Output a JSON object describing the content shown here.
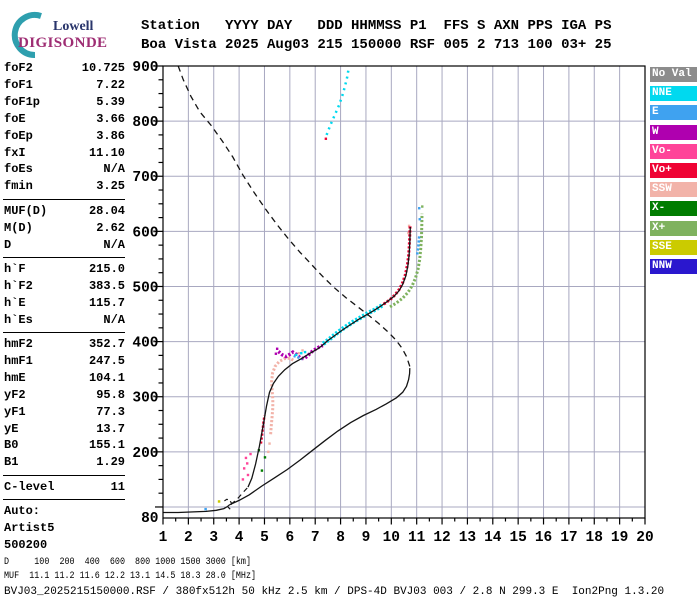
{
  "logo": {
    "line1": "Lowell",
    "line2": "DIGISONDE",
    "arc_color": "#2E9FAE",
    "lowell_color": "#29356B",
    "digisonde_color": "#9E2D73"
  },
  "header": {
    "line1": "Station   YYYY DAY   DDD HHMMSS P1  FFS S AXN PPS IGA PS",
    "line2": "Boa Vista 2025 Aug03 215 150000 RSF 005 2 713 100 03+ 25"
  },
  "params": {
    "rows": [
      {
        "label": "foF2",
        "value": "10.725"
      },
      {
        "label": "foF1",
        "value": "7.22"
      },
      {
        "label": "foF1p",
        "value": "5.39"
      },
      {
        "label": "foE",
        "value": "3.66"
      },
      {
        "label": "foEp",
        "value": "3.86"
      },
      {
        "label": "fxI",
        "value": "11.10"
      },
      {
        "label": "foEs",
        "value": "N/A"
      },
      {
        "label": "fmin",
        "value": "3.25"
      },
      {
        "divider": true
      },
      {
        "label": "MUF(D)",
        "value": "28.04"
      },
      {
        "label": "M(D)",
        "value": "2.62"
      },
      {
        "label": "D",
        "value": "N/A"
      },
      {
        "divider": true
      },
      {
        "label": "h`F",
        "value": "215.0"
      },
      {
        "label": "h`F2",
        "value": "383.5"
      },
      {
        "label": "h`E",
        "value": "115.7"
      },
      {
        "label": "h`Es",
        "value": "N/A"
      },
      {
        "divider": true
      },
      {
        "label": "hmF2",
        "value": "352.7"
      },
      {
        "label": "hmF1",
        "value": "247.5"
      },
      {
        "label": "hmE",
        "value": "104.1"
      },
      {
        "label": "yF2",
        "value": "95.8"
      },
      {
        "label": "yF1",
        "value": "77.3"
      },
      {
        "label": "yE",
        "value": "13.7"
      },
      {
        "label": "B0",
        "value": "155.1"
      },
      {
        "label": "B1",
        "value": "1.29"
      },
      {
        "divider": true
      },
      {
        "label": "C-level",
        "value": "11"
      },
      {
        "divider": true
      },
      {
        "label": "Auto:",
        "value": ""
      },
      {
        "label": "Artist5",
        "value": ""
      },
      {
        "label": "500200",
        "value": ""
      }
    ]
  },
  "legend": {
    "items": [
      {
        "label": "No Val",
        "color": "#8C8C8C"
      },
      {
        "label": "NNE",
        "color": "#00D9EF"
      },
      {
        "label": "E",
        "color": "#3FA2F0"
      },
      {
        "label": "W",
        "color": "#AF00AF"
      },
      {
        "label": "Vo-",
        "color": "#FF4499"
      },
      {
        "label": "Vo+",
        "color": "#EF0334"
      },
      {
        "label": "SSW",
        "color": "#F2B3A9"
      },
      {
        "label": "X-",
        "color": "#007C00"
      },
      {
        "label": "X+",
        "color": "#7FB25F"
      },
      {
        "label": "SSE",
        "color": "#CBCB00"
      },
      {
        "label": "NNW",
        "color": "#2A17CE"
      }
    ]
  },
  "footer": {
    "d_row": "D     100  200  400  600  800 1000 1500 3000 [km]",
    "muf_row": "MUF  11.1 11.2 11.6 12.2 13.1 14.5 18.3 28.0 [MHz]",
    "file_row": "BVJ03_2025215150000.RSF / 380fx512h 50 kHz 2.5 km / DPS-4D BVJ03 003 / 2.8 N 299.3 E  Ion2Png 1.3.20"
  },
  "chart_data": {
    "type": "scatter",
    "title": "Boa Vista 2025 Aug03 215 150000 ionogram",
    "xlabel": "",
    "ylabel": "",
    "x_range": [
      1,
      20
    ],
    "y_range": [
      80,
      900
    ],
    "grid": true,
    "x_tick_labels": [
      "1",
      "2",
      "3",
      "4",
      "5",
      "6",
      "7",
      "8",
      "9",
      "10",
      "11",
      "12",
      "13",
      "14",
      "15",
      "16",
      "17",
      "18",
      "19",
      "20"
    ],
    "y_tick_labels": [
      "900",
      "800",
      "700",
      "600",
      "500",
      "400",
      "300",
      "200",
      "80"
    ],
    "grid_color": "#A8A8C0",
    "curve_color": "#141414",
    "series": [
      {
        "name": "echo-sse-e-region",
        "kind": "points",
        "color": "#CBCB00",
        "w": 2.5,
        "points": [
          [
            3.21,
            110
          ]
        ]
      },
      {
        "name": "echo-e-low",
        "kind": "points",
        "color": "#3FA2F0",
        "w": 2.5,
        "points": [
          [
            2.68,
            96
          ]
        ]
      },
      {
        "name": "echo-vo-minus-flow",
        "kind": "points",
        "color": "#FF4499",
        "w": 2.4,
        "points": [
          [
            4.2,
            170
          ],
          [
            4.32,
            179
          ],
          [
            4.27,
            189
          ],
          [
            4.45,
            196
          ],
          [
            4.35,
            158
          ],
          [
            4.15,
            150
          ]
        ]
      },
      {
        "name": "echo-x-minus-flow",
        "kind": "points",
        "color": "#007C00",
        "w": 2.4,
        "points": [
          [
            4.78,
            203
          ],
          [
            5.02,
            190
          ],
          [
            4.9,
            166
          ]
        ]
      },
      {
        "name": "echo-vo-plus-low",
        "kind": "dots",
        "color": "#EF0334",
        "w": 2.5,
        "points": [
          [
            4.86,
            215
          ],
          [
            4.9,
            228
          ],
          [
            4.93,
            241
          ],
          [
            4.96,
            254
          ],
          [
            5.0,
            266
          ]
        ]
      },
      {
        "name": "echo-ssw-hf-arc",
        "kind": "dots",
        "color": "#F2B3A9",
        "w": 3,
        "points": [
          [
            5.24,
            232
          ],
          [
            5.27,
            248
          ],
          [
            5.3,
            264
          ],
          [
            5.33,
            280
          ],
          [
            5.33,
            296
          ],
          [
            5.3,
            312
          ],
          [
            5.28,
            328
          ],
          [
            5.32,
            343
          ],
          [
            5.42,
            355
          ],
          [
            5.58,
            364
          ],
          [
            5.78,
            369
          ],
          [
            6.0,
            370
          ],
          [
            6.15,
            366
          ]
        ]
      },
      {
        "name": "echo-ssw-scatter",
        "kind": "points",
        "color": "#F2B3A9",
        "w": 2.4,
        "points": [
          [
            5.2,
            215
          ],
          [
            5.15,
            200
          ],
          [
            6.35,
            379
          ],
          [
            6.5,
            384
          ],
          [
            10.67,
            597
          ],
          [
            10.7,
            610
          ]
        ]
      },
      {
        "name": "echo-w-f1-band",
        "kind": "dots",
        "color": "#AF00AF",
        "w": 3.5,
        "points": [
          [
            5.55,
            382
          ],
          [
            5.7,
            376
          ],
          [
            5.85,
            373
          ],
          [
            6.0,
            377
          ],
          [
            6.12,
            381
          ],
          [
            6.25,
            377
          ],
          [
            6.4,
            371
          ],
          [
            6.55,
            369
          ],
          [
            6.7,
            374
          ],
          [
            6.85,
            381
          ],
          [
            7.0,
            386
          ],
          [
            7.15,
            390
          ],
          [
            7.3,
            393
          ]
        ]
      },
      {
        "name": "echo-w-scatter",
        "kind": "points",
        "color": "#AF00AF",
        "w": 2.4,
        "points": [
          [
            5.5,
            387
          ],
          [
            5.45,
            378
          ]
        ]
      },
      {
        "name": "echo-e-f1",
        "kind": "dots",
        "color": "#3FA2F0",
        "w": 2.5,
        "points": [
          [
            6.15,
            374
          ],
          [
            6.35,
            371
          ],
          [
            6.5,
            368
          ]
        ]
      },
      {
        "name": "echo-nne-f1",
        "kind": "points",
        "color": "#00D9EF",
        "w": 2.4,
        "points": [
          [
            6.25,
            376
          ],
          [
            6.45,
            379
          ],
          [
            6.6,
            381
          ]
        ]
      },
      {
        "name": "echo-nne-f2-band",
        "kind": "dots",
        "color": "#00D9EF",
        "w": 4.5,
        "points": [
          [
            7.32,
            396
          ],
          [
            7.6,
            406
          ],
          [
            7.9,
            417
          ],
          [
            8.2,
            427
          ],
          [
            8.5,
            436
          ],
          [
            8.8,
            444
          ],
          [
            9.1,
            452
          ],
          [
            9.4,
            459
          ],
          [
            9.65,
            466
          ]
        ]
      },
      {
        "name": "echo-nne-spread-streak",
        "kind": "dots-sparse",
        "color": "#00D9EF",
        "w": 2.5,
        "points": [
          [
            7.45,
            775
          ],
          [
            7.6,
            793
          ],
          [
            7.78,
            812
          ],
          [
            7.95,
            830
          ],
          [
            8.08,
            848
          ],
          [
            8.18,
            864
          ],
          [
            8.26,
            880
          ],
          [
            8.32,
            896
          ]
        ]
      },
      {
        "name": "echo-vo-plus-streak-base",
        "kind": "points",
        "color": "#EF0334",
        "w": 2.4,
        "points": [
          [
            7.42,
            768
          ]
        ]
      },
      {
        "name": "echo-x-plus-cusp",
        "kind": "dots",
        "color": "#7FB25F",
        "w": 3,
        "points": [
          [
            9.95,
            463
          ],
          [
            10.2,
            470
          ],
          [
            10.45,
            479
          ],
          [
            10.65,
            489
          ],
          [
            10.82,
            501
          ],
          [
            10.95,
            515
          ],
          [
            11.05,
            531
          ],
          [
            11.12,
            549
          ],
          [
            11.16,
            568
          ],
          [
            11.19,
            590
          ],
          [
            11.2,
            612
          ],
          [
            11.21,
            632
          ]
        ]
      },
      {
        "name": "echo-e-cusp",
        "kind": "dots",
        "color": "#3FA2F0",
        "w": 2.5,
        "points": [
          [
            11.02,
            558
          ],
          [
            11.07,
            576
          ],
          [
            11.1,
            592
          ]
        ]
      },
      {
        "name": "echo-e-cusp-top",
        "kind": "points",
        "color": "#3FA2F0",
        "w": 2.4,
        "points": [
          [
            11.12,
            622
          ],
          [
            11.1,
            642
          ]
        ]
      },
      {
        "name": "echo-x-plus-top",
        "kind": "points",
        "color": "#7FB25F",
        "w": 2.4,
        "points": [
          [
            11.22,
            645
          ]
        ]
      },
      {
        "name": "echo-vo-plus-cusp",
        "kind": "dots",
        "color": "#EF0334",
        "w": 3,
        "points": [
          [
            9.7,
            468
          ],
          [
            9.95,
            476
          ],
          [
            10.15,
            485
          ],
          [
            10.32,
            495
          ],
          [
            10.45,
            507
          ],
          [
            10.55,
            521
          ],
          [
            10.63,
            538
          ],
          [
            10.68,
            556
          ],
          [
            10.71,
            575
          ],
          [
            10.73,
            594
          ],
          [
            10.74,
            612
          ]
        ]
      },
      {
        "name": "profile-e-bottom",
        "kind": "line",
        "color": "#141414",
        "w": 1.3,
        "points": [
          [
            1,
            90
          ],
          [
            1.6,
            90
          ],
          [
            2.2,
            91
          ],
          [
            2.7,
            92
          ],
          [
            3.1,
            94
          ],
          [
            3.4,
            97
          ],
          [
            3.55,
            101
          ],
          [
            3.62,
            104
          ]
        ]
      },
      {
        "name": "profile-e-peak-hook",
        "kind": "dash",
        "color": "#141414",
        "w": 1.2,
        "dash": "4 3",
        "points": [
          [
            3.42,
            111
          ],
          [
            3.52,
            114
          ],
          [
            3.63,
            112
          ],
          [
            3.7,
            107
          ],
          [
            3.67,
            102
          ]
        ]
      },
      {
        "name": "profile-hook-tick",
        "kind": "line",
        "color": "#141414",
        "w": 1.2,
        "points": [
          [
            3.56,
            100
          ],
          [
            3.65,
            96
          ]
        ]
      },
      {
        "name": "profile-valley",
        "kind": "dash",
        "color": "#141414",
        "w": 1.2,
        "dash": "5 4",
        "points": [
          [
            3.68,
            105
          ],
          [
            3.9,
            113
          ],
          [
            4.15,
            126
          ],
          [
            4.35,
            136
          ]
        ]
      },
      {
        "name": "artist-virtual-height-trace",
        "kind": "line",
        "color": "#141414",
        "w": 1.3,
        "points": [
          [
            4.35,
            136
          ],
          [
            4.5,
            152
          ],
          [
            4.65,
            178
          ],
          [
            4.8,
            210
          ],
          [
            4.95,
            248
          ],
          [
            5.08,
            283
          ],
          [
            5.2,
            308
          ],
          [
            5.35,
            324
          ],
          [
            5.55,
            337
          ],
          [
            5.8,
            349
          ],
          [
            6.1,
            360
          ],
          [
            6.45,
            369
          ],
          [
            6.8,
            379
          ],
          [
            7.1,
            387
          ],
          [
            7.25,
            392
          ],
          [
            7.5,
            402
          ],
          [
            7.8,
            412
          ],
          [
            8.1,
            422
          ],
          [
            8.4,
            431
          ],
          [
            8.7,
            440
          ],
          [
            9.0,
            448
          ],
          [
            9.3,
            456
          ],
          [
            9.6,
            465
          ],
          [
            9.85,
            473
          ],
          [
            10.1,
            482
          ],
          [
            10.3,
            492
          ],
          [
            10.45,
            504
          ],
          [
            10.57,
            519
          ],
          [
            10.65,
            537
          ],
          [
            10.7,
            557
          ],
          [
            10.73,
            580
          ],
          [
            10.75,
            608
          ]
        ]
      },
      {
        "name": "true-height-profile",
        "kind": "line",
        "color": "#141414",
        "w": 1.3,
        "points": [
          [
            3.62,
            104
          ],
          [
            4.0,
            112
          ],
          [
            4.4,
            122
          ],
          [
            4.9,
            138
          ],
          [
            5.4,
            153
          ],
          [
            5.9,
            168
          ],
          [
            6.4,
            185
          ],
          [
            6.9,
            203
          ],
          [
            7.4,
            221
          ],
          [
            7.9,
            238
          ],
          [
            8.4,
            253
          ],
          [
            8.9,
            266
          ],
          [
            9.4,
            277
          ],
          [
            9.8,
            287
          ],
          [
            10.2,
            298
          ],
          [
            10.45,
            308
          ],
          [
            10.6,
            319
          ],
          [
            10.68,
            331
          ],
          [
            10.72,
            342
          ],
          [
            10.73,
            352
          ]
        ]
      },
      {
        "name": "topside-model-profile",
        "kind": "dash",
        "color": "#141414",
        "w": 1.3,
        "dash": "6 4.5",
        "points": [
          [
            10.73,
            355
          ],
          [
            10.6,
            373
          ],
          [
            10.42,
            388
          ],
          [
            10.18,
            403
          ],
          [
            9.88,
            417
          ],
          [
            9.5,
            433
          ],
          [
            9.1,
            448
          ],
          [
            8.65,
            464
          ],
          [
            8.2,
            480
          ],
          [
            7.75,
            498
          ],
          [
            7.3,
            518
          ],
          [
            6.85,
            540
          ],
          [
            6.4,
            562
          ],
          [
            5.95,
            586
          ],
          [
            5.5,
            612
          ],
          [
            5.05,
            640
          ],
          [
            4.6,
            670
          ],
          [
            4.15,
            702
          ],
          [
            3.75,
            735
          ],
          [
            3.35,
            763
          ],
          [
            2.9,
            792
          ],
          [
            2.45,
            817
          ],
          [
            2.1,
            845
          ],
          [
            1.8,
            875
          ],
          [
            1.6,
            900
          ]
        ]
      }
    ]
  }
}
